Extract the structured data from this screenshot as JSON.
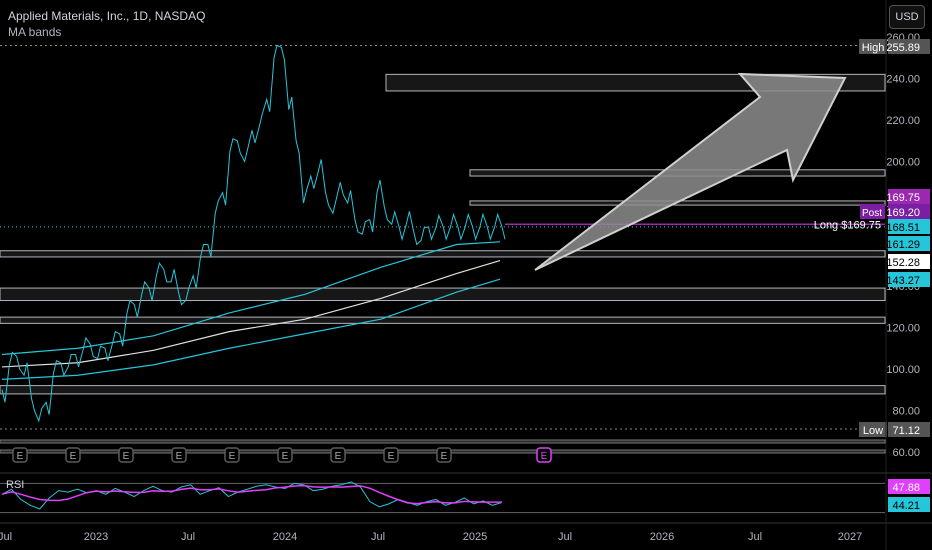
{
  "header": {
    "title": "Applied Materials, Inc., 1D, NASDAQ",
    "subtitle": "MA bands",
    "currency": "USD"
  },
  "colors": {
    "price": "#26c6da",
    "ma_band_outer": "#26c6da",
    "ma_mid": "#e0e0e0",
    "rsi": "#26c6da",
    "rsi_ma": "#e040fb",
    "level_lines": "#b2b5be",
    "zone_fill": "#2a2a2a",
    "long_line": "#9c27b0",
    "arrow_fill": "#8d8d8d"
  },
  "chart_data": {
    "type": "line",
    "title": "Applied Materials, Inc., 1D, NASDAQ",
    "y_ticks": [
      60,
      80,
      100,
      120,
      140,
      160,
      180,
      200,
      220,
      240,
      260
    ],
    "x_ticks": [
      "Jul",
      "2023",
      "Jul",
      "2024",
      "Jul",
      "2025",
      "Jul",
      "2026",
      "Jul",
      "2027"
    ],
    "ylim": [
      55,
      262
    ],
    "price_series": {
      "name": "AMAT",
      "x": [
        0,
        0.5,
        1,
        1.5,
        2,
        2.5,
        3,
        3.5,
        4,
        4.5,
        5,
        5.5,
        6,
        6.5,
        7,
        7.5,
        8,
        8.5,
        9,
        9.5,
        10,
        10.5,
        11,
        11.5,
        12,
        12.5,
        13,
        13.5,
        14,
        14.5,
        15,
        15.5,
        16,
        16.5,
        17,
        17.5,
        18,
        18.5,
        19,
        19.5,
        20,
        20.5,
        21,
        21.5,
        22,
        22.5,
        23,
        23.5,
        24,
        24.5,
        25,
        25.5,
        26,
        26.5,
        27,
        27.5,
        28,
        28.5,
        29,
        29.5,
        30,
        30.5,
        31,
        31.5,
        32,
        32.5,
        33,
        33.5,
        34,
        34.5
      ],
      "values": [
        90,
        102,
        106,
        97,
        86,
        75,
        84,
        98,
        103,
        101,
        107,
        109,
        112,
        105,
        110,
        112,
        117,
        127,
        131,
        136,
        139,
        145,
        148,
        142,
        137,
        133,
        145,
        154,
        160,
        175,
        185,
        205,
        210,
        200,
        215,
        217,
        230,
        250,
        255,
        225,
        210,
        180,
        193,
        195,
        185,
        175,
        190,
        180,
        172,
        165,
        172,
        185,
        178,
        169.75,
        168.51,
        170,
        166,
        162,
        168.51,
        168,
        168.51,
        168.51,
        168.51,
        168.51,
        168.51,
        168.51,
        168.51,
        168.51,
        168.51,
        168.51
      ]
    },
    "ma_upper": {
      "name": "MA band upper",
      "x": [
        0,
        4,
        8,
        12,
        16,
        20,
        24,
        26.3
      ],
      "values": [
        107,
        110,
        116,
        127,
        136,
        149,
        160,
        161.29
      ]
    },
    "ma_mid": {
      "name": "MA",
      "x": [
        0,
        4,
        8,
        12,
        16,
        20,
        24,
        26.3
      ],
      "values": [
        101,
        103,
        109,
        118,
        124,
        134,
        146,
        152.28
      ]
    },
    "ma_lower": {
      "name": "MA band lower",
      "x": [
        0,
        4,
        8,
        12,
        16,
        20,
        24,
        26.3
      ],
      "values": [
        95,
        97,
        102,
        110,
        117,
        124,
        137,
        143.27
      ]
    },
    "zones": [
      {
        "low": 234,
        "high": 242
      },
      {
        "low": 193,
        "high": 196
      },
      {
        "low": 179,
        "high": 181
      },
      {
        "low": 154,
        "high": 157
      },
      {
        "low": 133,
        "high": 139
      },
      {
        "low": 122,
        "high": 125
      },
      {
        "low": 88,
        "high": 92
      }
    ],
    "high": {
      "label": "High",
      "value": "255.89"
    },
    "low": {
      "label": "Low",
      "value": "71.12"
    },
    "long_position": {
      "label": "Long $169.75",
      "value": 169.75
    },
    "price_labels": [
      {
        "value": 169.75,
        "text": "169.75",
        "color": "#9c27b0",
        "tag": ""
      },
      {
        "value": 169.2,
        "text": "169.20",
        "color": "#7b1fa2",
        "tag": "Post"
      },
      {
        "value": 168.51,
        "text": "168.51",
        "color": "#26c6da",
        "tag": ""
      },
      {
        "value": 161.29,
        "text": "161.29",
        "color": "#26c6da",
        "tag": ""
      },
      {
        "value": 152.28,
        "text": "152.28",
        "color": "#ffffff",
        "tag": ""
      },
      {
        "value": 143.27,
        "text": "143.27",
        "color": "#26c6da",
        "tag": ""
      }
    ],
    "earnings_marker": "E",
    "earnings_count": 10,
    "rsi": {
      "label": "RSI",
      "value": "44.21",
      "ma_value": "47.88",
      "levels": [
        70,
        50,
        30
      ],
      "series": [
        55,
        62,
        48,
        40,
        35,
        50,
        60,
        58,
        62,
        57,
        60,
        55,
        63,
        58,
        52,
        60,
        66,
        60,
        58,
        65,
        68,
        55,
        60,
        64,
        52,
        58,
        62,
        66,
        68,
        65,
        63,
        70,
        68,
        60,
        62,
        66,
        68,
        72,
        65,
        45,
        38,
        42,
        48,
        44,
        40,
        45,
        48,
        40,
        44,
        50,
        42,
        46,
        40,
        44
      ]
    }
  }
}
